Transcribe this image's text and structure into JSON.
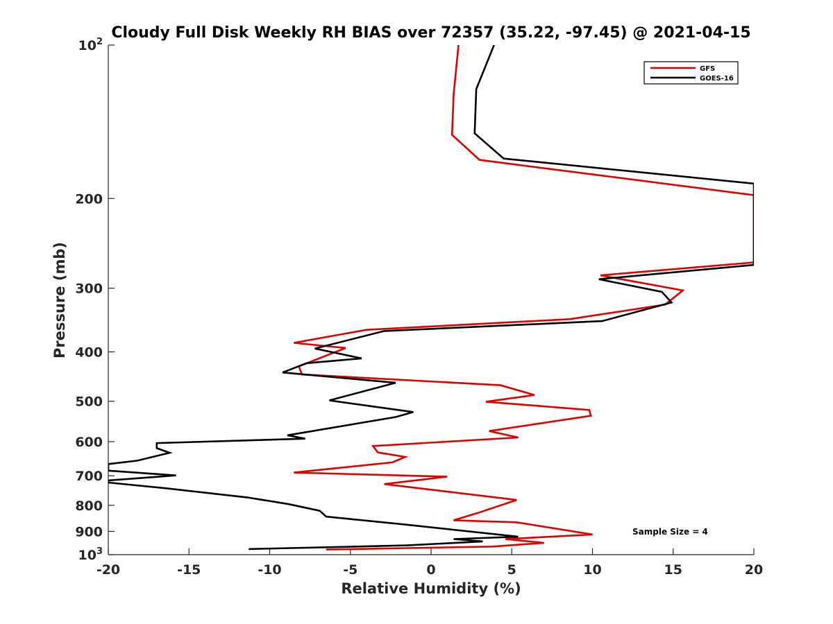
{
  "chart_data": {
    "type": "line",
    "title": "Cloudy Full Disk Weekly RH BIAS over 72357 (35.22, -97.45) @ 2021-04-15",
    "xlabel": "Relative Humidity (%)",
    "ylabel": "Pressure (mb)",
    "xlim": [
      -20,
      20
    ],
    "ylim": [
      100,
      1000
    ],
    "yscale": "log",
    "y_reversed": true,
    "grid": false,
    "legend_position": "top-right",
    "xticks": [
      "-20",
      "-15",
      "-10",
      "-5",
      "0",
      "5",
      "10",
      "15",
      "20"
    ],
    "yticks": [
      {
        "value": 100,
        "base": "10",
        "exp": "2"
      },
      {
        "value": 200,
        "label": "200"
      },
      {
        "value": 300,
        "label": "300"
      },
      {
        "value": 400,
        "label": "400"
      },
      {
        "value": 500,
        "label": "500"
      },
      {
        "value": 600,
        "label": "600"
      },
      {
        "value": 700,
        "label": "700"
      },
      {
        "value": 800,
        "label": "800"
      },
      {
        "value": 900,
        "label": "900"
      },
      {
        "value": 1000,
        "base": "10",
        "exp": "3"
      }
    ],
    "annotation": "Sample Size = 4",
    "series": [
      {
        "name": "GFS",
        "color": "#e00000",
        "points": [
          [
            1.7,
            100
          ],
          [
            1.4,
            125
          ],
          [
            1.3,
            150
          ],
          [
            3.0,
            168
          ],
          [
            20.0,
            197
          ],
          [
            20.0,
            267
          ],
          [
            10.5,
            283
          ],
          [
            15.6,
            303
          ],
          [
            14.5,
            323
          ],
          [
            8.6,
            345
          ],
          [
            -4.0,
            362
          ],
          [
            -8.5,
            384
          ],
          [
            -5.3,
            393
          ],
          [
            -8.2,
            427
          ],
          [
            -8.0,
            443
          ],
          [
            4.3,
            465
          ],
          [
            6.4,
            486
          ],
          [
            3.4,
            501
          ],
          [
            9.8,
            520
          ],
          [
            9.9,
            534
          ],
          [
            3.6,
            572
          ],
          [
            5.4,
            589
          ],
          [
            -3.6,
            612
          ],
          [
            -3.3,
            630
          ],
          [
            -1.6,
            643
          ],
          [
            -2.4,
            659
          ],
          [
            -8.5,
            690
          ],
          [
            1.0,
            703
          ],
          [
            -2.9,
            727
          ],
          [
            5.3,
            781
          ],
          [
            2.9,
            828
          ],
          [
            1.4,
            856
          ],
          [
            5.3,
            864
          ],
          [
            10.0,
            913
          ],
          [
            4.6,
            932
          ],
          [
            7.0,
            948
          ],
          [
            3.8,
            964
          ],
          [
            -6.5,
            977
          ]
        ]
      },
      {
        "name": "GOES-16",
        "color": "#000000",
        "points": [
          [
            3.9,
            100
          ],
          [
            2.8,
            122
          ],
          [
            2.7,
            149
          ],
          [
            4.5,
            167
          ],
          [
            20.0,
            187
          ],
          [
            20.0,
            270
          ],
          [
            10.4,
            288
          ],
          [
            14.3,
            305
          ],
          [
            14.9,
            320
          ],
          [
            10.6,
            348
          ],
          [
            -2.9,
            364
          ],
          [
            -7.2,
            394
          ],
          [
            -4.3,
            412
          ],
          [
            -7.7,
            421
          ],
          [
            -9.2,
            439
          ],
          [
            -2.2,
            460
          ],
          [
            -6.3,
            498
          ],
          [
            -1.1,
            525
          ],
          [
            -2.2,
            537
          ],
          [
            -8.9,
            583
          ],
          [
            -7.8,
            592
          ],
          [
            -17.0,
            604
          ],
          [
            -17.0,
            618
          ],
          [
            -16.2,
            631
          ],
          [
            -18.2,
            654
          ],
          [
            -20.0,
            664
          ],
          [
            -20.0,
            684
          ],
          [
            -15.8,
            699
          ],
          [
            -20.0,
            715
          ],
          [
            -20.0,
            722
          ],
          [
            -16.4,
            741
          ],
          [
            -11.4,
            772
          ],
          [
            -8.8,
            796
          ],
          [
            -6.9,
            820
          ],
          [
            -6.5,
            842
          ],
          [
            -1.6,
            873
          ],
          [
            5.4,
            922
          ],
          [
            1.4,
            932
          ],
          [
            3.2,
            942
          ],
          [
            -1.5,
            959
          ],
          [
            -11.3,
            975
          ]
        ]
      }
    ]
  }
}
